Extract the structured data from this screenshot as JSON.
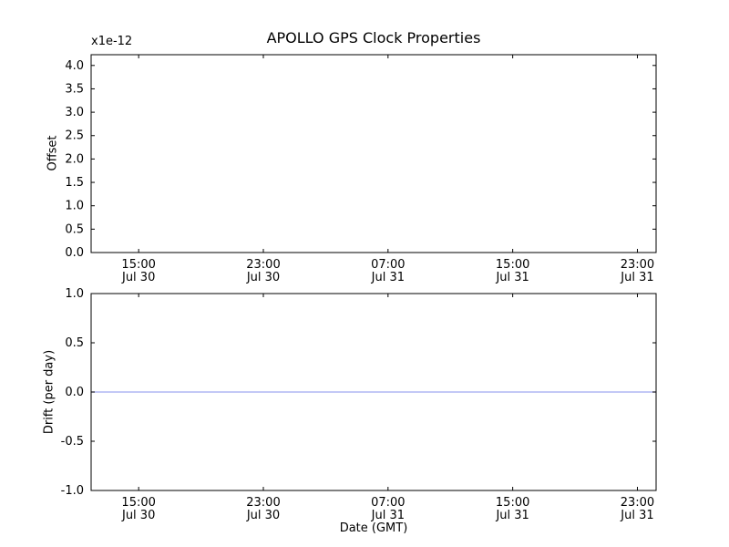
{
  "figure": {
    "title": "APOLLO GPS Clock Properties",
    "background": "#ffffff"
  },
  "colors": {
    "axes_border": "#000000",
    "tick": "#000000",
    "text": "#000000",
    "drift_line": "#9fa8f0"
  },
  "chart_data": [
    {
      "type": "line",
      "title": "APOLLO GPS Clock Properties",
      "ylabel": "Offset",
      "xlabel": "",
      "y_offset_text": "x1e-12",
      "ytick_values": [
        0.0,
        0.5,
        1.0,
        1.5,
        2.0,
        2.5,
        3.0,
        3.5,
        4.0
      ],
      "ytick_labels": [
        "0.0",
        "0.5",
        "1.0",
        "1.5",
        "2.0",
        "2.5",
        "3.0",
        "3.5",
        "4.0"
      ],
      "ylim": [
        0.0,
        4.23
      ],
      "xtick_hours": [
        15,
        23,
        31,
        39,
        47
      ],
      "xtick_labels": [
        [
          "15:00",
          "Jul 30"
        ],
        [
          "23:00",
          "Jul 30"
        ],
        [
          "07:00",
          "Jul 31"
        ],
        [
          "15:00",
          "Jul 31"
        ],
        [
          "23:00",
          "Jul 31"
        ]
      ],
      "xlim_hours": [
        11.95,
        48.2
      ],
      "grid": false,
      "legend": "none",
      "series": []
    },
    {
      "type": "line",
      "title": "",
      "ylabel": "Drift (per day)",
      "xlabel": "Date (GMT)",
      "y_offset_text": "",
      "ytick_values": [
        -1.0,
        -0.5,
        0.0,
        0.5,
        1.0
      ],
      "ytick_labels": [
        "-1.0",
        "-0.5",
        "0.0",
        "0.5",
        "1.0"
      ],
      "ylim": [
        -1.0,
        1.0
      ],
      "xtick_hours": [
        15,
        23,
        31,
        39,
        47
      ],
      "xtick_labels": [
        [
          "15:00",
          "Jul 30"
        ],
        [
          "23:00",
          "Jul 30"
        ],
        [
          "07:00",
          "Jul 31"
        ],
        [
          "15:00",
          "Jul 31"
        ],
        [
          "23:00",
          "Jul 31"
        ]
      ],
      "xlim_hours": [
        11.95,
        48.2
      ],
      "grid": false,
      "legend": "none",
      "series": [
        {
          "name": "drift",
          "color": "#9fa8f0",
          "constant_y": 0.0
        }
      ]
    }
  ]
}
